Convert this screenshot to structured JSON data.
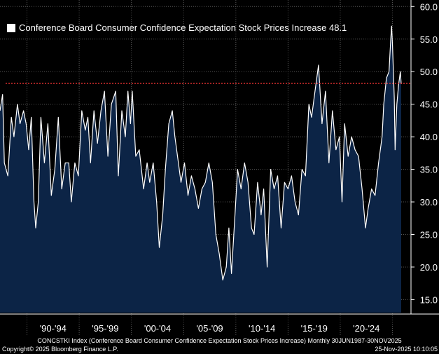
{
  "chart_data": {
    "type": "area",
    "title": "Conference Board Consumer Confidence Expectation Stock Prices Increase 48.1",
    "legend_label": "Conference Board Consumer Confidence Expectation Stock Prices Increase",
    "last_value_label": "48.1",
    "last_value": 48.1,
    "legend_position": "top-left",
    "x_range": [
      "1987-06",
      "2025-11"
    ],
    "ylim": [
      13,
      61
    ],
    "y_ticks": [
      "15.0",
      "20.0",
      "25.0",
      "30.0",
      "35.0",
      "40.0",
      "45.0",
      "50.0",
      "55.0",
      "60.0"
    ],
    "x_period_labels": [
      "'90-'94",
      "'95-'99",
      "'00-'04",
      "'05-'09",
      "'10-'14",
      "'15-'19",
      "'20-'24"
    ],
    "grid": true,
    "series": [
      {
        "values": [
          [
            "1987-06",
            44.0
          ],
          [
            "1987-09",
            46.5
          ],
          [
            "1987-11",
            36.0
          ],
          [
            "1988-03",
            34.0
          ],
          [
            "1988-07",
            43.0
          ],
          [
            "1988-10",
            40.0
          ],
          [
            "1989-02",
            45.0
          ],
          [
            "1989-05",
            42.0
          ],
          [
            "1989-09",
            44.0
          ],
          [
            "1989-12",
            42.0
          ],
          [
            "1990-03",
            38.0
          ],
          [
            "1990-06",
            43.0
          ],
          [
            "1990-09",
            30.0
          ],
          [
            "1990-11",
            26.0
          ],
          [
            "1991-02",
            30.0
          ],
          [
            "1991-05",
            43.0
          ],
          [
            "1991-09",
            36.0
          ],
          [
            "1992-01",
            42.0
          ],
          [
            "1992-05",
            31.0
          ],
          [
            "1992-09",
            35.0
          ],
          [
            "1993-01",
            43.0
          ],
          [
            "1993-05",
            32.0
          ],
          [
            "1993-09",
            36.0
          ],
          [
            "1994-01",
            36.0
          ],
          [
            "1994-04",
            30.0
          ],
          [
            "1994-08",
            36.0
          ],
          [
            "1994-12",
            34.0
          ],
          [
            "1995-04",
            44.0
          ],
          [
            "1995-08",
            41.0
          ],
          [
            "1995-11",
            43.0
          ],
          [
            "1996-02",
            36.0
          ],
          [
            "1996-06",
            44.0
          ],
          [
            "1996-10",
            39.0
          ],
          [
            "1997-02",
            44.0
          ],
          [
            "1997-06",
            47.0
          ],
          [
            "1997-10",
            37.0
          ],
          [
            "1998-02",
            45.0
          ],
          [
            "1998-07",
            47.0
          ],
          [
            "1998-10",
            34.0
          ],
          [
            "1999-02",
            44.0
          ],
          [
            "1999-06",
            40.0
          ],
          [
            "1999-09",
            47.0
          ],
          [
            "1999-12",
            42.0
          ],
          [
            "2000-02",
            47.0
          ],
          [
            "2000-06",
            37.0
          ],
          [
            "2000-10",
            38.0
          ],
          [
            "2001-03",
            32.0
          ],
          [
            "2001-07",
            36.0
          ],
          [
            "2001-10",
            33.0
          ],
          [
            "2002-02",
            36.0
          ],
          [
            "2002-06",
            30.0
          ],
          [
            "2002-09",
            23.0
          ],
          [
            "2003-01",
            28.0
          ],
          [
            "2003-04",
            35.0
          ],
          [
            "2003-08",
            42.0
          ],
          [
            "2003-12",
            44.0
          ],
          [
            "2004-03",
            40.0
          ],
          [
            "2004-07",
            36.0
          ],
          [
            "2004-10",
            33.0
          ],
          [
            "2005-02",
            36.0
          ],
          [
            "2005-06",
            31.0
          ],
          [
            "2005-10",
            34.0
          ],
          [
            "2006-02",
            32.0
          ],
          [
            "2006-06",
            29.0
          ],
          [
            "2006-10",
            32.0
          ],
          [
            "2007-02",
            33.0
          ],
          [
            "2007-06",
            36.0
          ],
          [
            "2007-10",
            33.0
          ],
          [
            "2008-02",
            25.0
          ],
          [
            "2008-06",
            22.0
          ],
          [
            "2008-10",
            18.0
          ],
          [
            "2009-02",
            20.0
          ],
          [
            "2009-05",
            26.0
          ],
          [
            "2009-08",
            19.0
          ],
          [
            "2009-12",
            28.0
          ],
          [
            "2010-03",
            35.0
          ],
          [
            "2010-07",
            32.0
          ],
          [
            "2010-11",
            36.0
          ],
          [
            "2011-03",
            33.0
          ],
          [
            "2011-07",
            26.0
          ],
          [
            "2011-10",
            25.0
          ],
          [
            "2012-02",
            33.0
          ],
          [
            "2012-06",
            28.0
          ],
          [
            "2012-09",
            32.0
          ],
          [
            "2013-01",
            20.0
          ],
          [
            "2013-05",
            35.0
          ],
          [
            "2013-09",
            32.0
          ],
          [
            "2014-01",
            34.0
          ],
          [
            "2014-05",
            26.0
          ],
          [
            "2014-09",
            33.0
          ],
          [
            "2015-01",
            32.0
          ],
          [
            "2015-05",
            34.0
          ],
          [
            "2015-09",
            30.0
          ],
          [
            "2016-01",
            28.0
          ],
          [
            "2016-05",
            35.0
          ],
          [
            "2016-09",
            34.0
          ],
          [
            "2017-01",
            45.0
          ],
          [
            "2017-04",
            43.0
          ],
          [
            "2017-08",
            47.0
          ],
          [
            "2017-12",
            51.0
          ],
          [
            "2018-04",
            42.0
          ],
          [
            "2018-08",
            47.0
          ],
          [
            "2018-12",
            36.0
          ],
          [
            "2019-04",
            44.0
          ],
          [
            "2019-08",
            38.0
          ],
          [
            "2019-12",
            40.0
          ],
          [
            "2020-03",
            30.0
          ],
          [
            "2020-06",
            42.0
          ],
          [
            "2020-10",
            37.0
          ],
          [
            "2021-02",
            40.0
          ],
          [
            "2021-06",
            38.0
          ],
          [
            "2021-10",
            37.0
          ],
          [
            "2022-02",
            32.0
          ],
          [
            "2022-06",
            26.0
          ],
          [
            "2022-09",
            29.0
          ],
          [
            "2023-01",
            32.0
          ],
          [
            "2023-05",
            31.0
          ],
          [
            "2023-09",
            36.0
          ],
          [
            "2024-01",
            40.0
          ],
          [
            "2024-03",
            45.0
          ],
          [
            "2024-06",
            49.0
          ],
          [
            "2024-09",
            50.0
          ],
          [
            "2024-11",
            55.0
          ],
          [
            "2024-12",
            57.0
          ],
          [
            "2025-01",
            54.0
          ],
          [
            "2025-03",
            46.0
          ],
          [
            "2025-04",
            38.0
          ],
          [
            "2025-06",
            45.0
          ],
          [
            "2025-08",
            48.0
          ],
          [
            "2025-10",
            50.0
          ],
          [
            "2025-11",
            48.1
          ]
        ]
      }
    ],
    "reference_line": {
      "value": 48.2,
      "color": "#e03030"
    }
  },
  "colors": {
    "background": "#000000",
    "area_fill": "#0c2446",
    "line": "#ffffff",
    "grid": "#555555"
  },
  "footer": {
    "title": "CONCSTKI Index (Conference Board Consumer Confidence Expectation Stock Prices Increase) Monthly 30JUN1987-30NOV2025",
    "copyright": "Copyright© 2025 Bloomberg Finance L.P.",
    "timestamp": "25-Nov-2025 10:10:05"
  }
}
